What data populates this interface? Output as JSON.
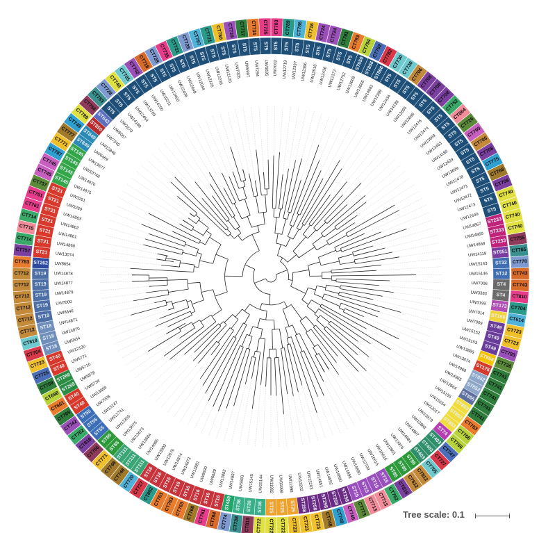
{
  "tree_scale": {
    "label": "Tree scale: 0.1",
    "length": 0.1
  },
  "leaves": [
    {
      "isolate": "UW7002",
      "st": "ST5",
      "ct": "CT703",
      "ct_color": "#f3f3f3"
    },
    {
      "isolate": "UW12719",
      "st": "ST5",
      "ct": "CT789",
      "ct_color": "#f3f3f3"
    },
    {
      "isolate": "UW12397",
      "st": "ST5",
      "ct": "CT786",
      "ct_color": "#f3f3f3"
    },
    {
      "isolate": "UW12396",
      "st": "ST5",
      "ct": "CT716",
      "ct_color": "#f3f3f3"
    },
    {
      "isolate": "UW12619",
      "st": "ST5",
      "ct": "CT724",
      "ct_color": "#f3f3f3"
    },
    {
      "isolate": "UW12436",
      "st": "ST5",
      "ct": "CT724",
      "ct_color": "#f3f3f3"
    },
    {
      "isolate": "UW12172",
      "st": "ST5",
      "ct": "CT781",
      "ct_color": "#f3f3f3"
    },
    {
      "isolate": "UW12752",
      "st": "ST5",
      "ct": "CT783",
      "ct_color": "#f3f3f3"
    },
    {
      "isolate": "UW13669",
      "st": "ST650",
      "ct": "CT794",
      "ct_color": "#f3f3f3"
    },
    {
      "isolate": "UW13666",
      "st": "ST856",
      "ct": "CT792",
      "ct_color": "#f3f3f3"
    },
    {
      "isolate": "UW14082",
      "st": "ST866",
      "ct": "CT782",
      "ct_color": "#f3f3f3"
    },
    {
      "isolate": "UW12399",
      "st": "ST5",
      "ct": "CT730",
      "ct_color": "#f3f3f3"
    },
    {
      "isolate": "UW12434",
      "st": "ST5",
      "ct": "CT730",
      "ct_color": "#f3f3f3"
    },
    {
      "isolate": "UW14199",
      "st": "ST5",
      "ct": "CT706",
      "ct_color": "#f3f3f3"
    },
    {
      "isolate": "UW12695",
      "st": "ST5",
      "ct": "CT708",
      "ct_color": "#f3f3f3"
    },
    {
      "isolate": "UW12698",
      "st": "ST5",
      "ct": "CT708",
      "ct_color": "#f3f3f3"
    },
    {
      "isolate": "UW12476",
      "st": "ST5",
      "ct": "CT708",
      "ct_color": "#f3f3f3"
    },
    {
      "isolate": "UW12474",
      "st": "ST5",
      "ct": "CT752",
      "ct_color": "#f3f3f3"
    },
    {
      "isolate": "UW13669",
      "st": "ST5",
      "ct": "CT864",
      "ct_color": "#f3f3f3"
    },
    {
      "isolate": "UW13463",
      "st": "ST5",
      "ct": "CT726",
      "ct_color": "#f3f3f3"
    },
    {
      "isolate": "UW14189",
      "st": "ST5",
      "ct": "CT790",
      "ct_color": "#f3f3f3"
    },
    {
      "isolate": "UW12429",
      "st": "ST5",
      "ct": "CT706",
      "ct_color": "#f3f3f3"
    },
    {
      "isolate": "UW13699",
      "st": "ST5",
      "ct": "CT708",
      "ct_color": "#f3f3f3"
    },
    {
      "isolate": "UW12478",
      "st": "ST5",
      "ct": "CT775",
      "ct_color": "#f3f3f3"
    },
    {
      "isolate": "UW12471",
      "st": "ST5",
      "ct": "CT768",
      "ct_color": "#f3f3f3"
    },
    {
      "isolate": "UW12472",
      "st": "ST5",
      "ct": "CT708",
      "ct_color": "#f3f3f3"
    },
    {
      "isolate": "UW12473",
      "st": "ST5",
      "ct": "CT740",
      "ct_color": "#f3f3f3"
    },
    {
      "isolate": "UW12649",
      "st": "ST5",
      "ct": "CT740",
      "ct_color": "#f3f3f3"
    },
    {
      "isolate": "UW14867",
      "st": "ST233",
      "ct": "CT740",
      "ct_color": "#f3f3f3"
    },
    {
      "isolate": "UW14869",
      "st": "ST233",
      "ct": "CT740",
      "ct_color": "#f3f3f3"
    },
    {
      "isolate": "UW14868",
      "st": "ST233",
      "ct": "CT755",
      "ct_color": "#f3f3f3"
    },
    {
      "isolate": "UW14119",
      "st": "ST651",
      "ct": "CT765",
      "ct_color": "#f3f3f3"
    },
    {
      "isolate": "UW15143",
      "st": "ST32",
      "ct": "CT770",
      "ct_color": "#f3f3f3"
    },
    {
      "isolate": "UW15146",
      "st": "ST32",
      "ct": "CT743",
      "ct_color": "#f3f3f3"
    },
    {
      "isolate": "UW7006",
      "st": "ST4",
      "ct": "CT743",
      "ct_color": "#f3f3f3"
    },
    {
      "isolate": "UW3383",
      "st": "ST4",
      "ct": "CT810",
      "ct_color": "#f3f3f3"
    },
    {
      "isolate": "UW3199",
      "st": "ST173",
      "ct": "CT704",
      "ct_color": "#f3f3f3"
    },
    {
      "isolate": "UW7014",
      "st": "ST159",
      "ct": "CT614",
      "ct_color": "#f3f3f3"
    },
    {
      "isolate": "UW7009",
      "st": "ST49",
      "ct": "CT723",
      "ct_color": "#f3f3f3"
    },
    {
      "isolate": "UW15152",
      "st": "ST49",
      "ct": "CT723",
      "ct_color": "#f3f3f3"
    },
    {
      "isolate": "UW15153",
      "st": "ST49",
      "ct": "CT793",
      "ct_color": "#f3f3f3"
    },
    {
      "isolate": "UW13886",
      "st": "ST858",
      "ct": "CT726",
      "ct_color": "#f3f3f3"
    },
    {
      "isolate": "UW13874",
      "st": "ST175",
      "ct": "CT741",
      "ct_color": "#f3f3f3"
    },
    {
      "isolate": "UW14968",
      "st": "ST852",
      "ct": "CT741",
      "ct_color": "#f3f3f3"
    },
    {
      "isolate": "UW14965",
      "st": "ST852",
      "ct": "CT741",
      "ct_color": "#f3f3f3"
    },
    {
      "isolate": "UW12664",
      "st": "ST855",
      "ct": "CT741",
      "ct_color": "#f3f3f3"
    },
    {
      "isolate": "UW15155",
      "st": "ST853",
      "ct": "CT741",
      "ct_color": "#f3f3f3"
    },
    {
      "isolate": "UW15154",
      "st": "ST853",
      "ct": "CT763",
      "ct_color": "#f3f3f3"
    },
    {
      "isolate": "UW12017",
      "st": "ST853",
      "ct": "CT766",
      "ct_color": "#f3f3f3"
    },
    {
      "isolate": "UW13879",
      "st": "ST74",
      "ct": "CT766",
      "ct_color": "#f3f3f3"
    },
    {
      "isolate": "UW13883",
      "st": "ST403",
      "ct": "CT747",
      "ct_color": "#f3f3f3"
    },
    {
      "isolate": "UW14887",
      "st": "ST403",
      "ct": "CT727",
      "ct_color": "#f3f3f3"
    },
    {
      "isolate": "UW14884",
      "st": "ST403",
      "ct": "CT705",
      "ct_color": "#f3f3f3"
    },
    {
      "isolate": "UW13976",
      "st": "ST85",
      "ct": "CT812",
      "ct_color": "#f3f3f3"
    },
    {
      "isolate": "UW13891",
      "st": "ST85",
      "ct": "CT812",
      "ct_color": "#f3f3f3"
    },
    {
      "isolate": "UW16616",
      "st": "ST85",
      "ct": "CT816",
      "ct_color": "#f3f3f3"
    },
    {
      "isolate": "UW16615",
      "st": "ST15",
      "ct": "CT762",
      "ct_color": "#f3f3f3"
    },
    {
      "isolate": "UW12709",
      "st": "ST15",
      "ct": "CT713",
      "ct_color": "#f3f3f3"
    },
    {
      "isolate": "UW14890",
      "st": "ST15",
      "ct": "CT713",
      "ct_color": "#f3f3f3"
    },
    {
      "isolate": "UW14898",
      "st": "ST15",
      "ct": "CT773",
      "ct_color": "#f3f3f3"
    },
    {
      "isolate": "UW14890",
      "st": "ST258",
      "ct": "CT746",
      "ct_color": "#f3f3f3"
    },
    {
      "isolate": "UW14852",
      "st": "ST258",
      "ct": "CT749",
      "ct_color": "#f3f3f3"
    },
    {
      "isolate": "UW14851",
      "st": "ST258",
      "ct": "CT748",
      "ct_color": "#f3f3f3"
    },
    {
      "isolate": "UW13203",
      "st": "ST258",
      "ct": "CT723",
      "ct_color": "#f3f3f3"
    },
    {
      "isolate": "UW13202",
      "st": "ST258",
      "ct": "CT723",
      "ct_color": "#f3f3f3"
    },
    {
      "isolate": "UW11998",
      "st": "ST25",
      "ct": "CT723",
      "ct_color": "#f3f3f3"
    },
    {
      "isolate": "UW11999",
      "st": "ST25",
      "ct": "CT722",
      "ct_color": "#f3f3f3"
    },
    {
      "isolate": "UW11992",
      "st": "ST25",
      "ct": "CT722",
      "ct_color": "#f3f3f3"
    },
    {
      "isolate": "UW15144",
      "st": "ST36",
      "ct": "CT722",
      "ct_color": "#f3f3f3"
    },
    {
      "isolate": "UW15145",
      "st": "ST36",
      "ct": "CT813",
      "ct_color": "#f3f3f3"
    },
    {
      "isolate": "UW6683",
      "st": "ST36",
      "ct": "CT738",
      "ct_color": "#f3f3f3"
    },
    {
      "isolate": "UW14897",
      "st": "ST459",
      "ct": "CT774",
      "ct_color": "#f3f3f3"
    },
    {
      "isolate": "UW13882",
      "st": "ST16",
      "ct": "CT784",
      "ct_color": "#f3f3f3"
    },
    {
      "isolate": "UW6689",
      "st": "ST16",
      "ct": "CT761",
      "ct_color": "#f3f3f3"
    },
    {
      "isolate": "UW6690",
      "st": "ST16",
      "ct": "CT768",
      "ct_color": "#f3f3f3"
    },
    {
      "isolate": "UW13881",
      "st": "ST16",
      "ct": "CT763",
      "ct_color": "#f3f3f3"
    },
    {
      "isolate": "UW14873",
      "st": "ST16",
      "ct": "CT763",
      "ct_color": "#f3f3f3"
    },
    {
      "isolate": "UW14874",
      "st": "ST16",
      "ct": "CT763",
      "ct_color": "#f3f3f3"
    },
    {
      "isolate": "UW12676",
      "st": "ST16",
      "ct": "CT802",
      "ct_color": "#f3f3f3"
    },
    {
      "isolate": "UW13903",
      "st": "ST16",
      "ct": "CT727",
      "ct_color": "#f3f3f3"
    },
    {
      "isolate": "UW14885",
      "st": "ST111",
      "ct": "CT720",
      "ct_color": "#f3f3f3"
    },
    {
      "isolate": "UW13684",
      "st": "ST111",
      "ct": "CT748",
      "ct_color": "#f3f3f3"
    },
    {
      "isolate": "UW13673",
      "st": "ST111",
      "ct": "CT748",
      "ct_color": "#f3f3f3"
    },
    {
      "isolate": "UW13675",
      "st": "ST85",
      "ct": "CT771",
      "ct_color": "#f3f3f3"
    },
    {
      "isolate": "UW12355",
      "st": "ST85",
      "ct": "CT755",
      "ct_color": "#f3f3f3"
    },
    {
      "isolate": "UW12741",
      "st": "ST55",
      "ct": "CT816",
      "ct_color": "#f3f3f3"
    },
    {
      "isolate": "UW15147",
      "st": "ST55",
      "ct": "CT762",
      "ct_color": "#f3f3f3"
    },
    {
      "isolate": "UW7008",
      "st": "ST55",
      "ct": "CT742",
      "ct_color": "#f3f3f3"
    },
    {
      "isolate": "UW13869",
      "st": "ST40",
      "ct": "CT769",
      "ct_color": "#f3f3f3"
    },
    {
      "isolate": "UW6734",
      "st": "ST40",
      "ct": "CT661",
      "ct_color": "#f3f3f3"
    },
    {
      "isolate": "UW6878",
      "st": "ST268",
      "ct": "CT698",
      "ct_color": "#f3f3f3"
    },
    {
      "isolate": "UW5710",
      "st": "ST268",
      "ct": "CT769",
      "ct_color": "#f3f3f3"
    },
    {
      "isolate": "UW5771",
      "st": "ST40",
      "ct": "CT725",
      "ct_color": "#f3f3f3"
    },
    {
      "isolate": "UW12130",
      "st": "ST40",
      "ct": "CT723",
      "ct_color": "#f3f3f3"
    },
    {
      "isolate": "UW5554",
      "st": "ST18",
      "ct": "CT764",
      "ct_color": "#f3f3f3"
    },
    {
      "isolate": "UW14870",
      "st": "ST18",
      "ct": "CT818",
      "ct_color": "#f3f3f3"
    },
    {
      "isolate": "UW14871",
      "st": "ST18",
      "ct": "CT712",
      "ct_color": "#f3f3f3"
    },
    {
      "isolate": "UW8646",
      "st": "ST19",
      "ct": "CT712",
      "ct_color": "#f3f3f3"
    },
    {
      "isolate": "UW7000",
      "st": "ST19",
      "ct": "CT712",
      "ct_color": "#f3f3f3"
    },
    {
      "isolate": "UW14879",
      "st": "ST19",
      "ct": "CT712",
      "ct_color": "#f3f3f3"
    },
    {
      "isolate": "UW14877",
      "st": "ST19",
      "ct": "CT712",
      "ct_color": "#f3f3f3"
    },
    {
      "isolate": "UW14878",
      "st": "ST19",
      "ct": "CT712",
      "ct_color": "#f3f3f3"
    },
    {
      "isolate": "UW8654",
      "st": "ST262",
      "ct": "CT783",
      "ct_color": "#f3f3f3"
    },
    {
      "isolate": "UW13074",
      "st": "ST21",
      "ct": "CT757",
      "ct_color": "#f3f3f3"
    },
    {
      "isolate": "UW14860",
      "st": "ST21",
      "ct": "CT714",
      "ct_color": "#f3f3f3"
    },
    {
      "isolate": "UW14861",
      "st": "ST21",
      "ct": "CT715",
      "ct_color": "#f3f3f3"
    },
    {
      "isolate": "UW14862",
      "st": "ST21",
      "ct": "CT714",
      "ct_color": "#f3f3f3"
    },
    {
      "isolate": "UW14863",
      "st": "ST21",
      "ct": "CT761",
      "ct_color": "#f3f3f3"
    },
    {
      "isolate": "UW3269",
      "st": "ST21",
      "ct": "CT761",
      "ct_color": "#f3f3f3"
    },
    {
      "isolate": "UW3261",
      "st": "ST21",
      "ct": "CT737",
      "ct_color": "#f3f3f3"
    },
    {
      "isolate": "UW14875",
      "st": "ST145",
      "ct": "CT745",
      "ct_color": "#f3f3f3"
    },
    {
      "isolate": "UW14876",
      "st": "ST145",
      "ct": "CT745",
      "ct_color": "#f3f3f3"
    },
    {
      "isolate": "UW10748",
      "st": "ST145",
      "ct": "CT787",
      "ct_color": "#f3f3f3"
    },
    {
      "isolate": "UW13677",
      "st": "ST145",
      "ct": "CT771",
      "ct_color": "#f3f3f3"
    },
    {
      "isolate": "UW6469",
      "st": "ST849",
      "ct": "CT777",
      "ct_color": "#f3f3f3"
    },
    {
      "isolate": "UW12846",
      "st": "ST849",
      "ct": "CT749",
      "ct_color": "#f3f3f3"
    },
    {
      "isolate": "UW7240",
      "st": "ST850",
      "ct": "CT788",
      "ct_color": "#f3f3f3"
    },
    {
      "isolate": "UW6067",
      "st": "ST643",
      "ct": "CT756",
      "ct_color": "#f3f3f3"
    },
    {
      "isolate": "UW3270",
      "st": "ST5",
      "ct": "CT753",
      "ct_color": "#f3f3f3"
    },
    {
      "isolate": "UW14189",
      "st": "ST5",
      "ct": "CT728",
      "ct_color": "#f3f3f3"
    },
    {
      "isolate": "UW12454",
      "st": "ST5",
      "ct": "CT740",
      "ct_color": "#f3f3f3"
    },
    {
      "isolate": "UW13763",
      "st": "ST5",
      "ct": "CT705",
      "ct_color": "#f3f3f3"
    },
    {
      "isolate": "UW14200",
      "st": "ST5",
      "ct": "CT742",
      "ct_color": "#f3f3f3"
    },
    {
      "isolate": "UW10211",
      "st": "ST5",
      "ct": "CT718",
      "ct_color": "#f3f3f3"
    },
    {
      "isolate": "UW12450",
      "st": "ST5",
      "ct": "CT728",
      "ct_color": "#f3f3f3"
    },
    {
      "isolate": "UW12436",
      "st": "ST5",
      "ct": "CT735",
      "ct_color": "#f3f3f3"
    },
    {
      "isolate": "UW12649",
      "st": "ST5",
      "ct": "CT721",
      "ct_color": "#f3f3f3"
    },
    {
      "isolate": "UW12044",
      "st": "ST5",
      "ct": "CT728",
      "ct_color": "#f3f3f3"
    },
    {
      "isolate": "UW12126",
      "st": "ST5",
      "ct": "CT797",
      "ct_color": "#f3f3f3"
    },
    {
      "isolate": "UW12236",
      "st": "ST5",
      "ct": "CT721",
      "ct_color": "#f3f3f3"
    },
    {
      "isolate": "UW12120",
      "st": "ST5",
      "ct": "CT780",
      "ct_color": "#f3f3f3"
    },
    {
      "isolate": "UW7005",
      "st": "ST5",
      "ct": "CT729",
      "ct_color": "#f3f3f3"
    },
    {
      "isolate": "UW6997",
      "st": "ST5",
      "ct": "CT717",
      "ct_color": "#f3f3f3"
    },
    {
      "isolate": "UW7294",
      "st": "ST5",
      "ct": "CT734",
      "ct_color": "#f3f3f3"
    },
    {
      "isolate": "UW6695",
      "st": "ST5",
      "ct": "CT735",
      "ct_color": "#f3f3f3"
    }
  ]
}
